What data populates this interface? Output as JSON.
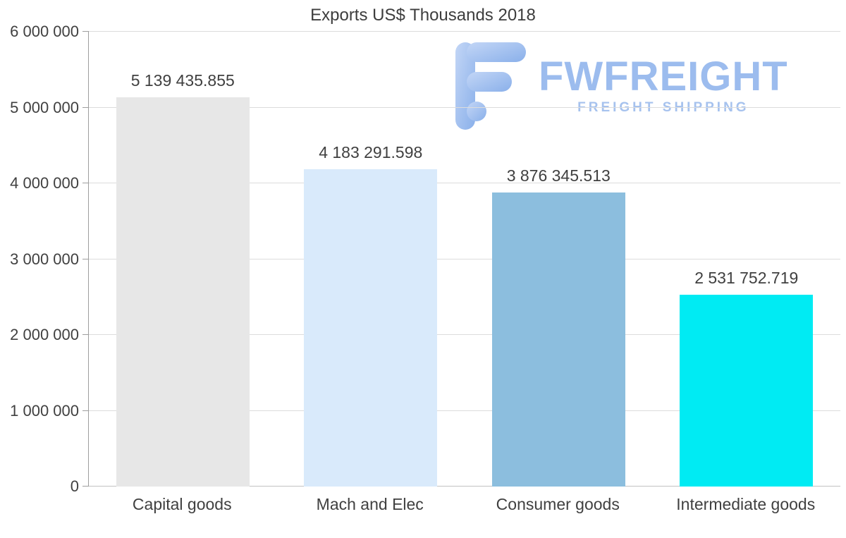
{
  "title": "Exports US$ Thousands 2018",
  "watermark": {
    "brand": "FWFREIGHT",
    "tagline": "FREIGHT SHIPPING",
    "color": "#9cbcee"
  },
  "chart_data": {
    "type": "bar",
    "title": "Exports US$ Thousands 2018",
    "categories": [
      "Capital goods",
      "Mach and Elec",
      "Consumer goods",
      "Intermediate goods"
    ],
    "values": [
      5139435.855,
      4183291.598,
      3876345.513,
      2531752.719
    ],
    "value_labels": [
      "5 139 435.855",
      "4 183 291.598",
      "3 876 345.513",
      "2 531 752.719"
    ],
    "bar_colors": [
      "#e7e7e7",
      "#d9eafb",
      "#8cbede",
      "#00ebf3"
    ],
    "xlabel": "",
    "ylabel": "",
    "ylim": [
      0,
      6000000
    ],
    "ytick_labels": [
      "0",
      "1 000 000",
      "2 000 000",
      "3 000 000",
      "4 000 000",
      "5 000 000",
      "6 000 000"
    ],
    "grid": true,
    "legend": false
  }
}
